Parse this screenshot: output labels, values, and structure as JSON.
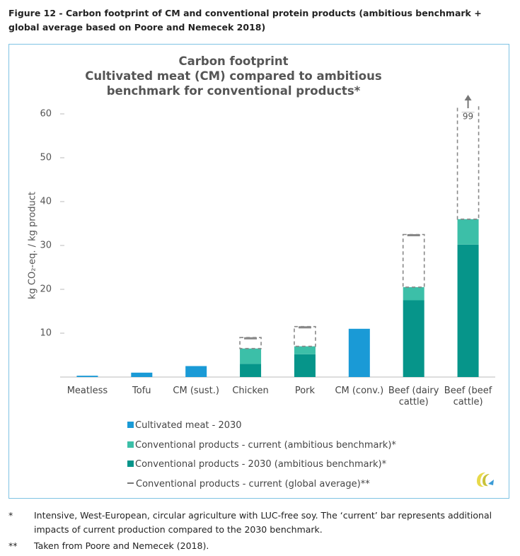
{
  "figure_caption": "Figure 12 - Carbon footprint of CM and conventional protein products (ambitious benchmark + global average based on Poore and Nemecek 2018)",
  "chart_data": {
    "type": "bar",
    "title": "Carbon footprint",
    "subtitle": "Cultivated meat (CM) compared to ambitious benchmark for conventional products*",
    "y_label": "kg CO₂-eq. / kg product",
    "categories": [
      "Meatless",
      "Tofu",
      "CM (sust.)",
      "Chicken",
      "Pork",
      "CM (conv.)",
      "Beef (dairy cattle)",
      "Beef (beef cattle)"
    ],
    "series": [
      {
        "name": "Cultivated meat - 2030",
        "color": "#1a9ad6",
        "values": [
          0.3,
          1.0,
          2.5,
          null,
          null,
          11,
          null,
          null
        ]
      },
      {
        "name": "Conventional products - current (ambitious benchmark)*",
        "color": "#3cbfa8",
        "values": [
          null,
          null,
          null,
          3.5,
          1.8,
          null,
          3.0,
          5.8
        ]
      },
      {
        "name": "Conventional products - 2030 (ambitious benchmark)*",
        "color": "#06958a",
        "values": [
          null,
          null,
          null,
          3.0,
          5.2,
          null,
          17.5,
          30.2
        ]
      },
      {
        "name": "Conventional products - current (global average)**",
        "color": "#888888",
        "style": "dashed",
        "values": [
          null,
          null,
          null,
          9,
          11.5,
          null,
          32.5,
          99
        ],
        "value_labels": [
          null,
          null,
          null,
          null,
          null,
          null,
          null,
          "99"
        ]
      }
    ],
    "ylim": [
      0,
      60
    ],
    "yticks": [
      10,
      20,
      30,
      40,
      50,
      60
    ]
  },
  "footnotes": [
    {
      "mark": "*",
      "text": "Intensive, West-European, circular agriculture with LUC-free soy. The ‘current’ bar represents additional impacts of current production compared to the 2030 benchmark."
    },
    {
      "mark": "**",
      "text": "Taken from Poore and Nemecek (2018)."
    }
  ]
}
